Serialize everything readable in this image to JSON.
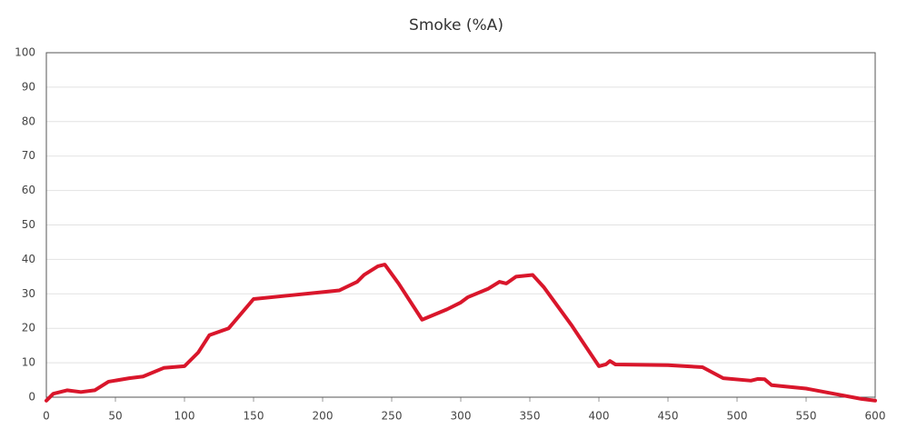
{
  "chart_data": {
    "type": "line",
    "title": "Smoke (%A)",
    "series": [
      {
        "color": "#d9162b",
        "x": [
          0,
          5,
          15,
          25,
          35,
          45,
          60,
          70,
          85,
          100,
          110,
          118,
          132,
          150,
          175,
          200,
          212,
          225,
          230,
          240,
          245,
          255,
          272,
          290,
          300,
          305,
          320,
          328,
          333,
          340,
          352,
          360,
          380,
          400,
          405,
          408,
          412,
          450,
          475,
          490,
          510,
          515,
          520,
          525,
          550,
          570,
          590,
          600
        ],
        "values": [
          -1,
          1,
          2,
          1.5,
          2,
          4.5,
          5.5,
          6,
          8.5,
          9,
          13,
          18,
          20,
          28.5,
          29.5,
          30.5,
          31,
          33.5,
          35.5,
          38,
          38.5,
          33,
          22.5,
          25.5,
          27.5,
          29,
          31.5,
          33.5,
          33,
          35,
          35.5,
          32,
          21,
          9,
          9.5,
          10.5,
          9.5,
          9.3,
          8.7,
          5.5,
          4.8,
          5.3,
          5.2,
          3.5,
          2.5,
          1,
          -0.5,
          -1
        ]
      }
    ],
    "xlim": [
      0,
      600
    ],
    "xticks": [
      0,
      50,
      100,
      150,
      200,
      250,
      300,
      350,
      400,
      450,
      500,
      550,
      600
    ],
    "ylim": [
      0,
      100
    ],
    "yticks": [
      0,
      10,
      20,
      30,
      40,
      50,
      60,
      70,
      80,
      90,
      100
    ],
    "grid": true
  }
}
